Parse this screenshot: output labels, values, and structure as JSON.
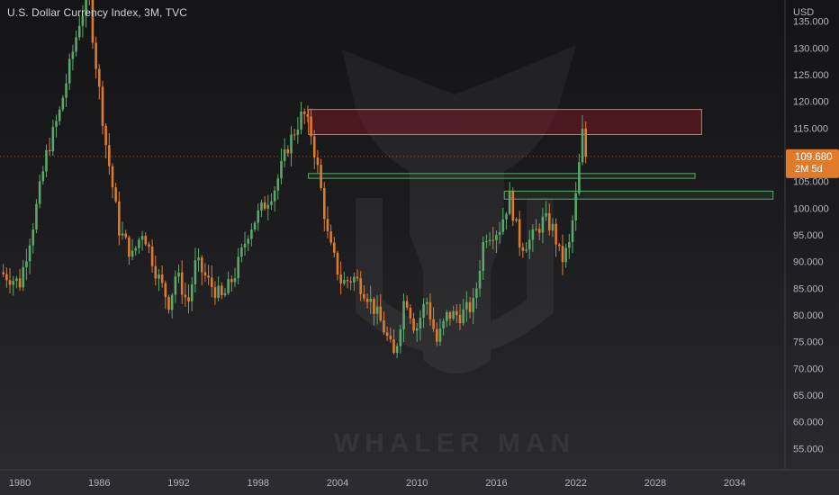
{
  "header": {
    "title": "U.S. Dollar Currency Index, 3M, TVC"
  },
  "watermark": {
    "text": "WHALER MAN"
  },
  "price_axis": {
    "unit": "USD"
  },
  "last_price": {
    "value": "109.680",
    "countdown": "2M 5d",
    "color": "#e07b2b"
  },
  "colors": {
    "up": "#5aa86a",
    "down": "#e07b2b",
    "resistance_zone": "#e07b2b",
    "support_zone": "#5aa86a"
  },
  "chart_data": {
    "type": "candlestick",
    "title": "U.S. Dollar Currency Index, 3M, TVC",
    "xlabel": "",
    "ylabel": "USD",
    "x_range": [
      1978.5,
      2037.8
    ],
    "ylim": [
      51,
      139
    ],
    "grid": false,
    "x_ticks": [
      "1980",
      "1986",
      "1992",
      "1998",
      "2004",
      "2010",
      "2016",
      "2022",
      "2028",
      "2034"
    ],
    "y_ticks": [
      "55.000",
      "60.000",
      "65.000",
      "70.000",
      "75.000",
      "80.000",
      "85.000",
      "90.000",
      "95.000",
      "100.000",
      "105.000",
      "110.000",
      "115.000",
      "120.000",
      "125.000",
      "130.000",
      "135.000"
    ],
    "series_path": [
      [
        1978.5,
        88
      ],
      [
        1980.0,
        86
      ],
      [
        1981.0,
        97
      ],
      [
        1982.0,
        110
      ],
      [
        1983.0,
        118
      ],
      [
        1984.5,
        135
      ],
      [
        1985.2,
        140
      ],
      [
        1985.6,
        130
      ],
      [
        1986.5,
        112
      ],
      [
        1987.5,
        96
      ],
      [
        1988.5,
        91
      ],
      [
        1989.3,
        96
      ],
      [
        1990.3,
        88
      ],
      [
        1991.3,
        82
      ],
      [
        1991.8,
        88
      ],
      [
        1992.7,
        82
      ],
      [
        1993.3,
        90
      ],
      [
        1994.3,
        86
      ],
      [
        1995.3,
        83
      ],
      [
        1996.3,
        88
      ],
      [
        1997.3,
        96
      ],
      [
        1998.3,
        100
      ],
      [
        1999.3,
        104
      ],
      [
        2000.3,
        112
      ],
      [
        2001.4,
        118
      ],
      [
        2002.0,
        114
      ],
      [
        2002.6,
        106
      ],
      [
        2003.3,
        94
      ],
      [
        2004.3,
        86
      ],
      [
        2005.3,
        87
      ],
      [
        2006.2,
        84
      ],
      [
        2007.4,
        78
      ],
      [
        2008.3,
        72
      ],
      [
        2009.1,
        84
      ],
      [
        2009.9,
        77
      ],
      [
        2010.7,
        83
      ],
      [
        2011.5,
        75
      ],
      [
        2012.3,
        80
      ],
      [
        2013.3,
        80
      ],
      [
        2014.3,
        82
      ],
      [
        2015.1,
        95
      ],
      [
        2016.2,
        96
      ],
      [
        2017.0,
        102
      ],
      [
        2017.8,
        93
      ],
      [
        2018.6,
        94
      ],
      [
        2019.6,
        98
      ],
      [
        2020.3,
        96
      ],
      [
        2020.9,
        90
      ],
      [
        2021.5,
        93
      ],
      [
        2022.0,
        102
      ],
      [
        2022.5,
        114
      ],
      [
        2022.8,
        109.68
      ]
    ],
    "zones": [
      {
        "kind": "resistance",
        "x": [
          2001.8,
          2031.5
        ],
        "y": [
          113.8,
          118.5
        ]
      },
      {
        "kind": "support",
        "x": [
          2001.8,
          2031.0
        ],
        "y": [
          105.6,
          106.5
        ]
      },
      {
        "kind": "support",
        "x": [
          2016.6,
          2036.9
        ],
        "y": [
          101.7,
          103.2
        ]
      }
    ],
    "last_close": 109.68
  }
}
